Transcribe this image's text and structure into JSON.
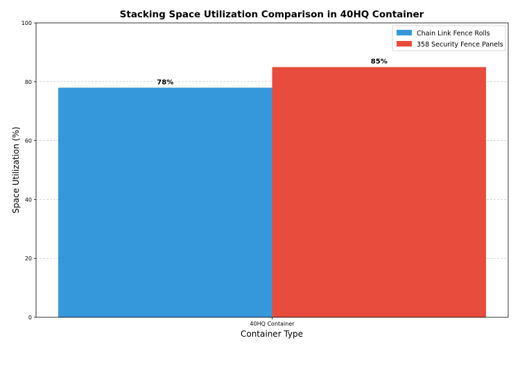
{
  "chart_data": {
    "type": "bar",
    "title": "Stacking Space Utilization Comparison in 40HQ Container",
    "xlabel": "Container Type",
    "ylabel": "Space Utilization (%)",
    "categories": [
      "40HQ Container"
    ],
    "ylim": [
      0,
      100
    ],
    "yticks": [
      0,
      20,
      40,
      60,
      80,
      100
    ],
    "grid": "y-dashed",
    "legend_position": "top-right",
    "series": [
      {
        "name": "Chain Link Fence Rolls",
        "values": [
          78
        ],
        "labels": [
          "78%"
        ],
        "color": "#3498db"
      },
      {
        "name": "358 Security Fence Panels",
        "values": [
          85
        ],
        "labels": [
          "85%"
        ],
        "color": "#e74c3c"
      }
    ]
  }
}
